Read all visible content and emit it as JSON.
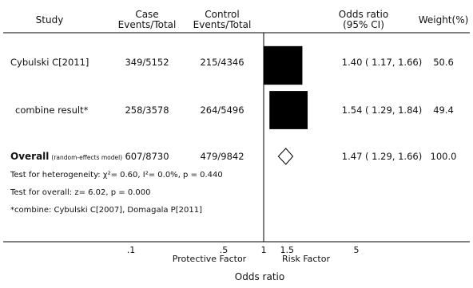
{
  "chart_data": {
    "type": "forest",
    "xlabel": "Odds ratio",
    "scale": "log",
    "xlim": [
      0.05,
      11
    ],
    "reference_value": 1,
    "x_ticks": [
      {
        "value": 0.1,
        "label": ".1"
      },
      {
        "value": 0.5,
        "label": ".5"
      },
      {
        "value": 1,
        "label": "1"
      },
      {
        "value": 1.5,
        "label": "1.5"
      },
      {
        "value": 5,
        "label": "5"
      }
    ],
    "direction_labels": {
      "left": "Protective Factor",
      "right": "Risk Factor"
    },
    "columns": {
      "study": "Study",
      "case_line1": "Case",
      "case_line2": "Events/Total",
      "control_line1": "Control",
      "control_line2": "Events/Total",
      "or_line1": "Odds ratio",
      "or_line2": "(95% CI)",
      "weight": "Weight(%)"
    },
    "studies": [
      {
        "name": "Cybulski C[2011]",
        "case": "349/5152",
        "control": "215/4346",
        "or": 1.4,
        "lower": 1.17,
        "upper": 1.66,
        "ci_text": "1.40 ( 1.17, 1.66)",
        "weight": 50.6,
        "weight_text": "50.6"
      },
      {
        "name": "combine result*",
        "case": "258/3578",
        "control": "264/5496",
        "or": 1.54,
        "lower": 1.29,
        "upper": 1.84,
        "ci_text": "1.54 ( 1.29, 1.84)",
        "weight": 49.4,
        "weight_text": "49.4"
      }
    ],
    "overall": {
      "label": "Overall",
      "model": "(random-effects model)",
      "case": "607/8730",
      "control": "479/9842",
      "or": 1.47,
      "lower": 1.29,
      "upper": 1.66,
      "ci_text": "1.47 ( 1.29, 1.66)",
      "weight_text": "100.0"
    },
    "notes": {
      "heterogeneity": "Test for heterogeneity: χ²= 0.60, I²= 0.0%, p = 0.440",
      "overall_test": "Test for overall:  z= 6.02, p = 0.000",
      "combine": "*combine: Cybulski C[2007],  Domagala P[2011]"
    }
  },
  "colors": {
    "marker": "#000000",
    "line": "#000000",
    "text": "#111111"
  }
}
